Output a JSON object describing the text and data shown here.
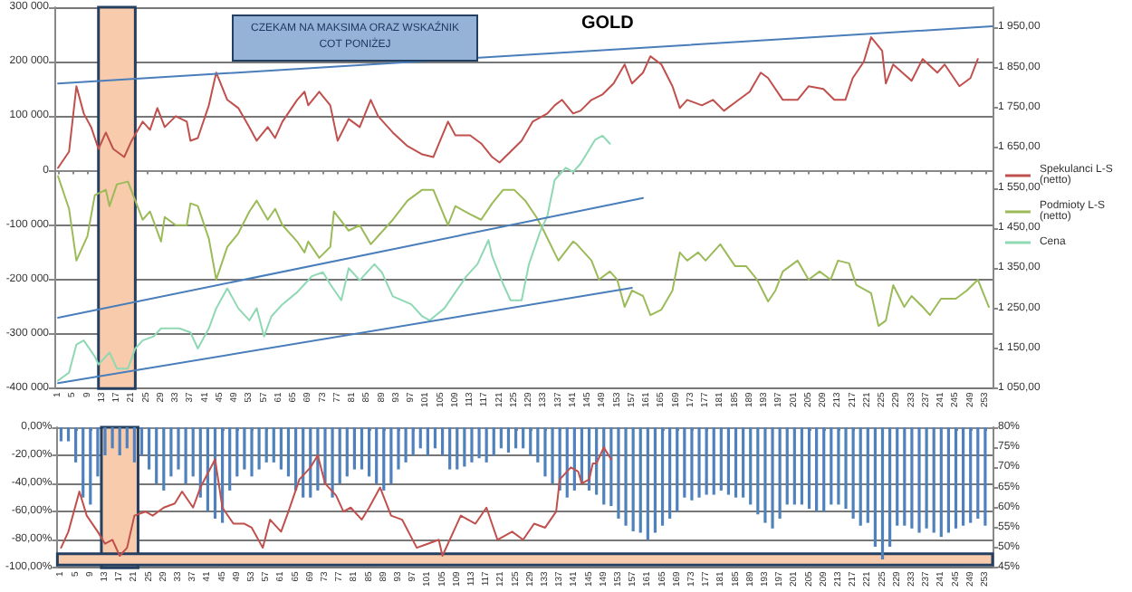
{
  "chart_data": [
    {
      "type": "line",
      "title": "GOLD",
      "annotations": [
        "CZEKAM NA MAKSIMA ORAZ WSKAŹNIK COT PONIŻEJ"
      ],
      "legend": "right",
      "grid": "y",
      "marker": "none",
      "line_style": "solid",
      "xlim": [
        0,
        255
      ],
      "xticks": [
        1,
        5,
        9,
        13,
        17,
        21,
        25,
        29,
        33,
        37,
        41,
        45,
        49,
        53,
        57,
        61,
        65,
        69,
        73,
        77,
        81,
        85,
        89,
        93,
        97,
        101,
        105,
        109,
        113,
        117,
        121,
        125,
        129,
        133,
        137,
        141,
        145,
        149,
        153,
        157,
        161,
        165,
        169,
        173,
        177,
        181,
        185,
        189,
        193,
        197,
        201,
        205,
        209,
        213,
        217,
        221,
        225,
        229,
        233,
        237,
        241,
        245,
        249,
        253
      ],
      "ylim": [
        -400000,
        300000
      ],
      "yticks": [
        {
          "value": -400000,
          "label": "-400 000"
        },
        {
          "value": -300000,
          "label": "-300 000"
        },
        {
          "value": -200000,
          "label": "-200 000"
        },
        {
          "value": -100000,
          "label": "-100 000"
        },
        0,
        {
          "value": 100000,
          "label": "100 000"
        },
        {
          "value": 200000,
          "label": "200 000"
        },
        {
          "value": 300000,
          "label": "300 000"
        }
      ],
      "y2lim": [
        1050,
        2000
      ],
      "y2ticks": [
        {
          "value": 1050,
          "label": "1 050,00"
        },
        {
          "value": 1150,
          "label": "1 150,00"
        },
        {
          "value": 1250,
          "label": "1 250,00"
        },
        {
          "value": 1350,
          "label": "1 350,00"
        },
        {
          "value": 1450,
          "label": "1 450,00"
        },
        {
          "value": 1550,
          "label": "1 550,00"
        },
        {
          "value": 1650,
          "label": "1 650,00"
        },
        {
          "value": 1750,
          "label": "1 750,00"
        },
        {
          "value": 1850,
          "label": "1 850,00"
        },
        {
          "value": 1950,
          "label": "1 950,00"
        }
      ],
      "bands": [
        {
          "axis": "x",
          "from": 12,
          "to": 22,
          "color": "#f8cbad"
        }
      ],
      "series": [
        {
          "name": "Spekulanci L-S (netto)",
          "color": "#c0504d",
          "x": [
            1,
            4,
            6,
            8,
            10,
            12,
            14,
            16,
            19,
            21,
            24,
            26,
            28,
            30,
            33,
            36,
            37,
            39,
            42,
            44,
            47,
            50,
            53,
            55,
            58,
            60,
            62,
            66,
            68,
            69,
            72,
            75,
            77,
            80,
            83,
            86,
            88,
            92,
            96,
            100,
            103,
            107,
            109,
            113,
            116,
            119,
            121,
            124,
            127,
            130,
            134,
            136,
            138,
            141,
            143,
            146,
            149,
            152,
            155,
            157,
            160,
            162,
            165,
            168,
            170,
            172,
            176,
            179,
            182,
            186,
            189,
            192,
            194,
            198,
            202,
            205,
            209,
            212,
            215,
            217,
            220,
            222,
            225,
            226,
            228,
            233,
            236,
            240,
            242,
            246,
            249,
            251
          ],
          "values": [
            5000,
            35000,
            155000,
            105000,
            80000,
            40000,
            70000,
            40000,
            25000,
            55000,
            90000,
            75000,
            115000,
            80000,
            100000,
            90000,
            55000,
            60000,
            120000,
            180000,
            130000,
            115000,
            80000,
            55000,
            80000,
            60000,
            90000,
            130000,
            145000,
            120000,
            145000,
            120000,
            55000,
            95000,
            80000,
            130000,
            100000,
            70000,
            45000,
            30000,
            25000,
            90000,
            65000,
            65000,
            50000,
            25000,
            15000,
            35000,
            55000,
            90000,
            105000,
            120000,
            130000,
            105000,
            110000,
            130000,
            140000,
            160000,
            195000,
            160000,
            180000,
            210000,
            195000,
            155000,
            115000,
            130000,
            120000,
            130000,
            110000,
            130000,
            145000,
            180000,
            170000,
            130000,
            130000,
            155000,
            150000,
            130000,
            130000,
            170000,
            200000,
            245000,
            220000,
            160000,
            195000,
            165000,
            205000,
            180000,
            195000,
            155000,
            170000,
            205000
          ]
        },
        {
          "name": "Podmioty L-S (netto)",
          "color": "#9bbb59",
          "x": [
            1,
            4,
            6,
            9,
            11,
            14,
            15,
            17,
            20,
            22,
            24,
            26,
            29,
            30,
            33,
            36,
            37,
            39,
            42,
            44,
            47,
            50,
            53,
            55,
            58,
            60,
            62,
            66,
            68,
            69,
            72,
            75,
            76,
            80,
            83,
            86,
            88,
            92,
            96,
            100,
            103,
            107,
            109,
            113,
            116,
            119,
            122,
            125,
            128,
            131,
            133,
            137,
            141,
            142,
            146,
            148,
            151,
            153,
            155,
            157,
            160,
            162,
            165,
            168,
            170,
            172,
            175,
            177,
            181,
            185,
            188,
            191,
            194,
            196,
            198,
            202,
            205,
            208,
            211,
            213,
            216,
            218,
            222,
            224,
            226,
            228,
            231,
            233,
            236,
            238,
            241,
            245,
            248,
            251,
            254
          ],
          "values": [
            -10000,
            -70000,
            -165000,
            -120000,
            -45000,
            -35000,
            -65000,
            -25000,
            -20000,
            -55000,
            -90000,
            -75000,
            -130000,
            -85000,
            -100000,
            -100000,
            -60000,
            -65000,
            -125000,
            -200000,
            -140000,
            -115000,
            -75000,
            -55000,
            -90000,
            -70000,
            -100000,
            -130000,
            -150000,
            -130000,
            -160000,
            -140000,
            -75000,
            -110000,
            -100000,
            -135000,
            -120000,
            -90000,
            -55000,
            -35000,
            -35000,
            -100000,
            -65000,
            -80000,
            -90000,
            -60000,
            -35000,
            -35000,
            -55000,
            -85000,
            -110000,
            -165000,
            -130000,
            -135000,
            -165000,
            -200000,
            -185000,
            -200000,
            -250000,
            -220000,
            -230000,
            -265000,
            -255000,
            -220000,
            -150000,
            -165000,
            -150000,
            -165000,
            -135000,
            -175000,
            -175000,
            -200000,
            -240000,
            -220000,
            -185000,
            -165000,
            -200000,
            -185000,
            -200000,
            -165000,
            -170000,
            -210000,
            -225000,
            -285000,
            -275000,
            -210000,
            -250000,
            -230000,
            -250000,
            -265000,
            -235000,
            -235000,
            -220000,
            -200000,
            -250000
          ]
        },
        {
          "name": "Cena",
          "color": "#8fd8b4",
          "axis": "y2",
          "x": [
            1,
            4,
            6,
            8,
            11,
            12,
            15,
            17,
            20,
            22,
            24,
            27,
            29,
            32,
            34,
            37,
            39,
            42,
            44,
            47,
            50,
            53,
            55,
            57,
            59,
            62,
            66,
            68,
            70,
            73,
            75,
            78,
            80,
            83,
            87,
            89,
            92,
            97,
            100,
            102,
            106,
            109,
            112,
            115,
            118,
            119,
            122,
            124,
            127,
            129,
            132,
            134,
            136,
            139,
            141,
            143,
            145,
            147,
            149,
            151
          ],
          "values": [
            1070,
            1090,
            1160,
            1170,
            1130,
            1110,
            1140,
            1100,
            1100,
            1150,
            1170,
            1180,
            1200,
            1200,
            1200,
            1190,
            1150,
            1200,
            1250,
            1300,
            1250,
            1220,
            1250,
            1180,
            1230,
            1260,
            1290,
            1310,
            1330,
            1340,
            1310,
            1270,
            1350,
            1320,
            1360,
            1340,
            1280,
            1260,
            1230,
            1220,
            1250,
            1290,
            1330,
            1360,
            1420,
            1380,
            1310,
            1270,
            1270,
            1360,
            1440,
            1480,
            1570,
            1600,
            1590,
            1610,
            1640,
            1670,
            1680,
            1660
          ]
        },
        {
          "color": "#4a7ebb",
          "x": [
            1,
            255
          ],
          "values": [
            160000,
            265000
          ]
        },
        {
          "color": "#4a7ebb",
          "x": [
            1,
            160
          ],
          "values": [
            -270000,
            -50000
          ]
        },
        {
          "color": "#4a7ebb",
          "x": [
            1,
            157
          ],
          "values": [
            -390000,
            -215000
          ]
        }
      ]
    },
    {
      "type": "bar",
      "grid": "y",
      "marker": "none",
      "line_style": "solid",
      "xlim": [
        0,
        255
      ],
      "xticks": [
        1,
        5,
        9,
        13,
        17,
        21,
        25,
        29,
        33,
        37,
        41,
        45,
        49,
        53,
        57,
        61,
        65,
        69,
        73,
        77,
        81,
        85,
        89,
        93,
        97,
        101,
        105,
        109,
        113,
        117,
        121,
        125,
        129,
        133,
        137,
        141,
        145,
        149,
        153,
        157,
        161,
        165,
        169,
        173,
        177,
        181,
        185,
        189,
        193,
        197,
        201,
        205,
        209,
        213,
        217,
        221,
        225,
        229,
        233,
        237,
        241,
        245,
        249,
        253
      ],
      "ylim": [
        -100,
        0
      ],
      "yticks": [
        {
          "value": -100,
          "label": "-100,00%"
        },
        {
          "value": -80,
          "label": "-80,00%"
        },
        {
          "value": -60,
          "label": "-60,00%"
        },
        {
          "value": -40,
          "label": "-40,00%"
        },
        {
          "value": -20,
          "label": "-20,00%"
        },
        {
          "value": 0,
          "label": "0,00%"
        }
      ],
      "y2lim": [
        45,
        80
      ],
      "y2ticks": [
        {
          "value": 45,
          "label": "45%"
        },
        {
          "value": 50,
          "label": "50%"
        },
        {
          "value": 55,
          "label": "55%"
        },
        {
          "value": 60,
          "label": "60%"
        },
        {
          "value": 65,
          "label": "65%"
        },
        {
          "value": 70,
          "label": "70%"
        },
        {
          "value": 75,
          "label": "75%"
        },
        {
          "value": 80,
          "label": "80%"
        }
      ],
      "bands": [
        {
          "axis": "x",
          "from": 12,
          "to": 22,
          "color": "#f8cbad"
        },
        {
          "axis": "y",
          "from": -98,
          "to": -90,
          "color": "#f8cbad"
        }
      ],
      "x": [
        1,
        3,
        5,
        7,
        9,
        11,
        13,
        15,
        17,
        19,
        21,
        23,
        25,
        27,
        29,
        31,
        33,
        35,
        37,
        39,
        41,
        43,
        45,
        47,
        49,
        51,
        53,
        55,
        57,
        59,
        61,
        63,
        65,
        67,
        69,
        71,
        73,
        75,
        77,
        79,
        81,
        83,
        85,
        87,
        89,
        91,
        93,
        95,
        97,
        99,
        101,
        103,
        105,
        107,
        109,
        111,
        113,
        115,
        117,
        119,
        121,
        123,
        125,
        127,
        129,
        131,
        133,
        135,
        137,
        139,
        141,
        143,
        145,
        147,
        149,
        151,
        153,
        155,
        157,
        159,
        161,
        163,
        165,
        167,
        169,
        171,
        173,
        175,
        177,
        179,
        181,
        183,
        185,
        187,
        189,
        191,
        193,
        195,
        197,
        199,
        201,
        203,
        205,
        207,
        209,
        211,
        213,
        215,
        217,
        219,
        221,
        223,
        225,
        227,
        229,
        231,
        233,
        235,
        237,
        239,
        241,
        243,
        245,
        247,
        249,
        251,
        253
      ],
      "series": [
        {
          "color": "#4f81bd",
          "values": [
            -10,
            -10,
            -25,
            -50,
            -55,
            -35,
            -20,
            -15,
            -20,
            -15,
            -25,
            -20,
            -30,
            -40,
            -45,
            -35,
            -30,
            -40,
            -35,
            -50,
            -60,
            -65,
            -68,
            -45,
            -35,
            -30,
            -35,
            -30,
            -25,
            -25,
            -30,
            -35,
            -45,
            -50,
            -50,
            -45,
            -40,
            -50,
            -40,
            -35,
            -30,
            -30,
            -35,
            -40,
            -45,
            -40,
            -30,
            -25,
            -20,
            -15,
            -20,
            -15,
            -20,
            -30,
            -30,
            -28,
            -25,
            -22,
            -25,
            -20,
            -15,
            -18,
            -15,
            -15,
            -20,
            -25,
            -35,
            -40,
            -45,
            -50,
            -45,
            -40,
            -45,
            -48,
            -55,
            -56,
            -65,
            -70,
            -74,
            -75,
            -80,
            -75,
            -70,
            -65,
            -60,
            -50,
            -52,
            -50,
            -48,
            -48,
            -45,
            -48,
            -50,
            -50,
            -55,
            -62,
            -68,
            -72,
            -65,
            -55,
            -55,
            -55,
            -58,
            -60,
            -60,
            -55,
            -55,
            -58,
            -65,
            -70,
            -68,
            -85,
            -94,
            -85,
            -70,
            -70,
            -72,
            -75,
            -72,
            -75,
            -78,
            -75,
            -72,
            -70,
            -68,
            -65,
            -70
          ]
        },
        {
          "type": "line",
          "color": "#c0504d",
          "axis": "y2",
          "x": [
            1,
            3,
            6,
            8,
            11,
            13,
            15,
            17,
            19,
            21,
            24,
            26,
            29,
            32,
            34,
            37,
            39,
            43,
            45,
            48,
            51,
            53,
            56,
            58,
            61,
            63,
            66,
            69,
            71,
            73,
            76,
            78,
            80,
            83,
            85,
            88,
            91,
            94,
            98,
            101,
            104,
            105,
            108,
            110,
            114,
            117,
            120,
            124,
            127,
            130,
            133,
            136,
            137,
            140,
            142,
            143,
            145,
            146,
            147,
            149,
            151
          ],
          "values": [
            50,
            54,
            64,
            58,
            54,
            51,
            52,
            48,
            50,
            58,
            59,
            58,
            60,
            61,
            64,
            60,
            65,
            72,
            60,
            56,
            56,
            55,
            50,
            57,
            54,
            59,
            67,
            70,
            73,
            66,
            63,
            59,
            60,
            57,
            60,
            65,
            58,
            57,
            50,
            51,
            52,
            48,
            54,
            58,
            56,
            60,
            52,
            54,
            52,
            56,
            55,
            59,
            67,
            70,
            69,
            66,
            67,
            71,
            71,
            75,
            72
          ]
        }
      ]
    }
  ]
}
